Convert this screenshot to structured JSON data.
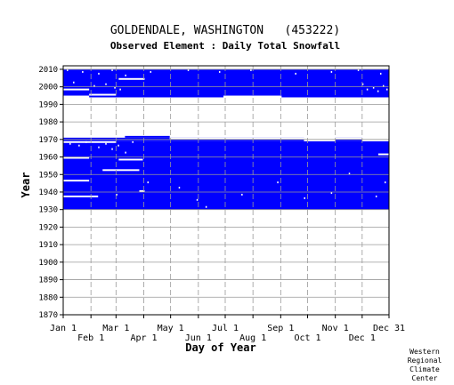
{
  "chart_data": {
    "type": "heatmap",
    "title": "GOLDENDALE, WASHINGTON   (453222)",
    "subtitle": "Observed Element : Daily Total Snowfall",
    "xlabel": "Day of Year",
    "ylabel": "Year",
    "x_ticks": [
      {
        "label": "Jan 1",
        "day": 1
      },
      {
        "label": "Feb 1",
        "day": 32
      },
      {
        "label": "Mar 1",
        "day": 60
      },
      {
        "label": "Apr 1",
        "day": 91
      },
      {
        "label": "May 1",
        "day": 121
      },
      {
        "label": "Jun 1",
        "day": 152
      },
      {
        "label": "Jul 1",
        "day": 182
      },
      {
        "label": "Aug 1",
        "day": 213
      },
      {
        "label": "Sep 1",
        "day": 244
      },
      {
        "label": "Oct 1",
        "day": 274
      },
      {
        "label": "Nov 1",
        "day": 305
      },
      {
        "label": "Dec 1",
        "day": 335
      },
      {
        "label": "Dec 31",
        "day": 365
      }
    ],
    "y_ticks": [
      1870,
      1880,
      1890,
      1900,
      1910,
      1920,
      1930,
      1940,
      1950,
      1960,
      1970,
      1980,
      1990,
      2000,
      2010
    ],
    "xlim": [
      1,
      365
    ],
    "ylim": [
      1870,
      2012
    ],
    "grid": true,
    "colors": {
      "observed": "#0000ff",
      "missing": "#ffffff",
      "grid": "#999999"
    },
    "observed_blocks": [
      {
        "year_start": 1930,
        "year_end": 1969,
        "day_start": 1,
        "day_end": 365
      },
      {
        "year_start": 1969,
        "year_end": 1971,
        "day_start": 1,
        "day_end": 60
      },
      {
        "year_start": 1969,
        "year_end": 1971,
        "day_start": 60,
        "day_end": 270
      },
      {
        "year_start": 1969,
        "year_end": 1971,
        "day_start": 305,
        "day_end": 335
      },
      {
        "year_start": 1971,
        "year_end": 1972,
        "day_start": 70,
        "day_end": 120
      },
      {
        "year_start": 1994,
        "year_end": 2010,
        "day_start": 1,
        "day_end": 365
      }
    ],
    "missing_segments": [
      {
        "year": 1937,
        "day_start": 1,
        "day_end": 40
      },
      {
        "year": 1940,
        "day_start": 86,
        "day_end": 92
      },
      {
        "year": 1946,
        "day_start": 1,
        "day_end": 30
      },
      {
        "year": 1952,
        "day_start": 45,
        "day_end": 86
      },
      {
        "year": 1958,
        "day_start": 63,
        "day_end": 90
      },
      {
        "year": 1959,
        "day_start": 1,
        "day_end": 30
      },
      {
        "year": 1961,
        "day_start": 353,
        "day_end": 365
      },
      {
        "year": 1968,
        "day_start": 1,
        "day_end": 60
      },
      {
        "year": 1969,
        "day_start": 270,
        "day_end": 305
      },
      {
        "year": 1969,
        "day_start": 335,
        "day_end": 365
      },
      {
        "year": 1970,
        "day_start": 120,
        "day_end": 365
      },
      {
        "year": 1994,
        "day_start": 1,
        "day_end": 30
      },
      {
        "year": 1994,
        "day_start": 180,
        "day_end": 245
      },
      {
        "year": 1995,
        "day_start": 30,
        "day_end": 60
      },
      {
        "year": 1998,
        "day_start": 1,
        "day_end": 30
      },
      {
        "year": 2004,
        "day_start": 63,
        "day_end": 92
      }
    ],
    "missing_dots": [
      [
        5,
        2009
      ],
      [
        22,
        2008
      ],
      [
        40,
        2007
      ],
      [
        55,
        2009
      ],
      [
        70,
        2006
      ],
      [
        98,
        2008
      ],
      [
        140,
        2009
      ],
      [
        175,
        2008
      ],
      [
        210,
        2009
      ],
      [
        260,
        2007
      ],
      [
        300,
        2008
      ],
      [
        330,
        2009
      ],
      [
        355,
        2007
      ],
      [
        12,
        2002
      ],
      [
        35,
        2000
      ],
      [
        48,
        2001
      ],
      [
        58,
        1999
      ],
      [
        64,
        1998
      ],
      [
        335,
        2001
      ],
      [
        340,
        1998
      ],
      [
        347,
        1999
      ],
      [
        352,
        1997
      ],
      [
        358,
        2000
      ],
      [
        362,
        1998
      ],
      [
        8,
        1967
      ],
      [
        18,
        1966
      ],
      [
        26,
        1968
      ],
      [
        40,
        1965
      ],
      [
        55,
        1964
      ],
      [
        62,
        1966
      ],
      [
        70,
        1962
      ],
      [
        78,
        1968
      ],
      [
        48,
        1967
      ],
      [
        60,
        1938
      ],
      [
        95,
        1945
      ],
      [
        150,
        1935
      ],
      [
        200,
        1938
      ],
      [
        270,
        1936
      ],
      [
        300,
        1939
      ],
      [
        160,
        1931
      ],
      [
        130,
        1942
      ],
      [
        240,
        1945
      ],
      [
        320,
        1950
      ],
      [
        350,
        1937
      ],
      [
        360,
        1945
      ]
    ]
  },
  "credit": [
    "Western",
    "Regional",
    "Climate",
    "Center"
  ]
}
